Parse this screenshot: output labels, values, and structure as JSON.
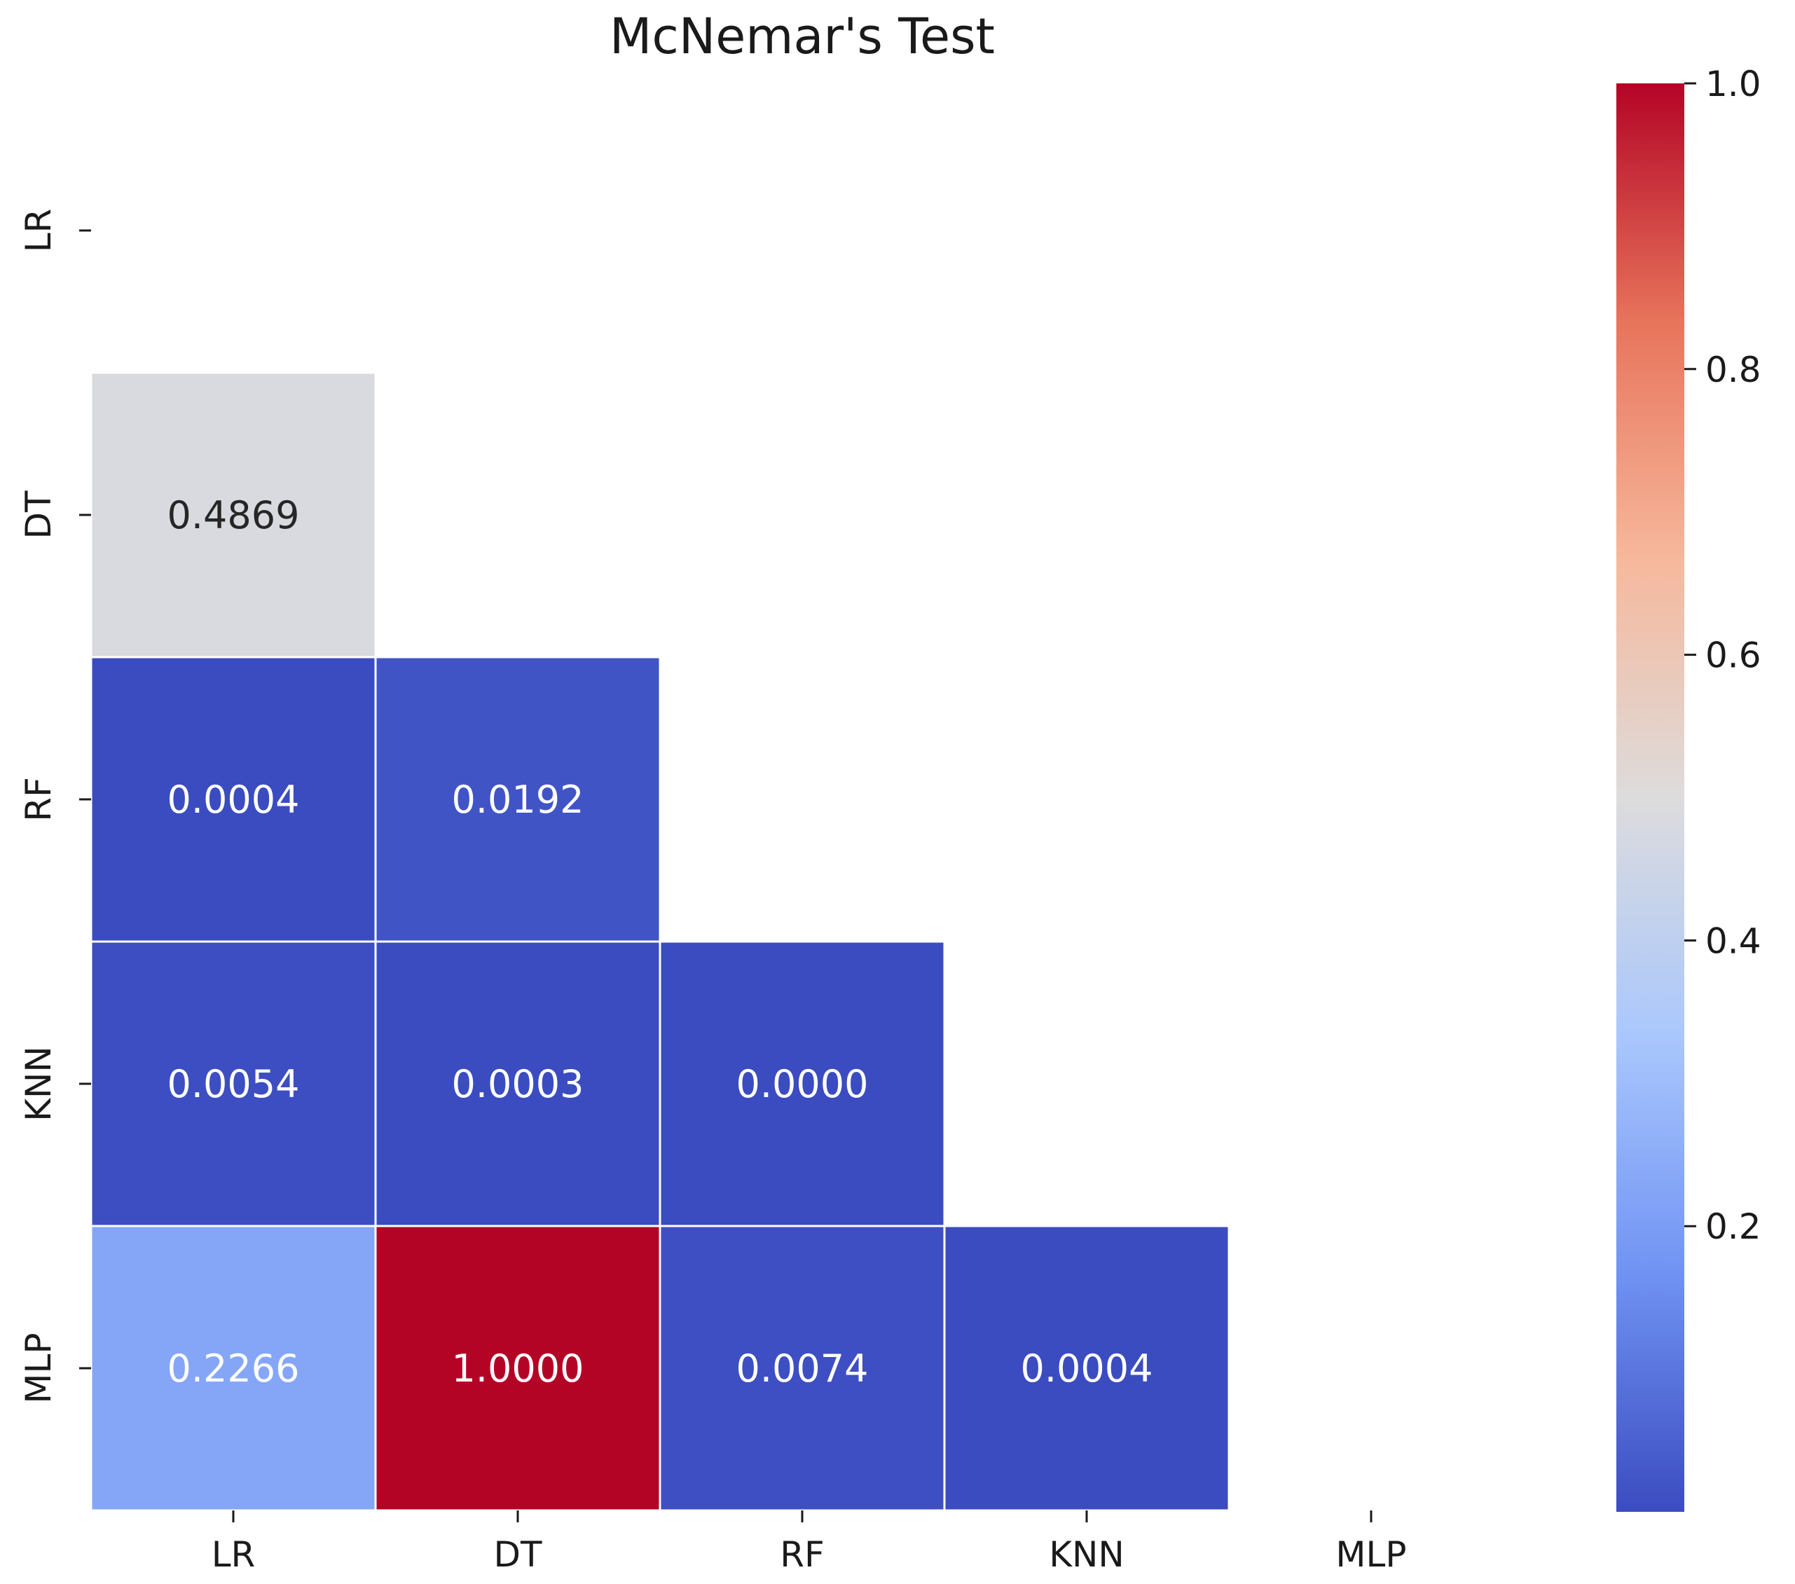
{
  "chart_data": {
    "type": "heatmap",
    "title": "McNemar's Test",
    "xlabel": "",
    "ylabel": "",
    "x_categories": [
      "LR",
      "DT",
      "RF",
      "KNN",
      "MLP"
    ],
    "y_categories": [
      "LR",
      "DT",
      "RF",
      "KNN",
      "MLP"
    ],
    "mask": "upper-triangle-including-diagonal",
    "cells": [
      {
        "row": "DT",
        "col": "LR",
        "value": 0.4869,
        "label": "0.4869"
      },
      {
        "row": "RF",
        "col": "LR",
        "value": 0.0004,
        "label": "0.0004"
      },
      {
        "row": "RF",
        "col": "DT",
        "value": 0.0192,
        "label": "0.0192"
      },
      {
        "row": "KNN",
        "col": "LR",
        "value": 0.0054,
        "label": "0.0054"
      },
      {
        "row": "KNN",
        "col": "DT",
        "value": 0.0003,
        "label": "0.0003"
      },
      {
        "row": "KNN",
        "col": "RF",
        "value": 0.0,
        "label": "0.0000"
      },
      {
        "row": "MLP",
        "col": "LR",
        "value": 0.2266,
        "label": "0.2266"
      },
      {
        "row": "MLP",
        "col": "DT",
        "value": 1.0,
        "label": "1.0000"
      },
      {
        "row": "MLP",
        "col": "RF",
        "value": 0.0074,
        "label": "0.0074"
      },
      {
        "row": "MLP",
        "col": "KNN",
        "value": 0.0004,
        "label": "0.0004"
      }
    ],
    "colormap": "coolwarm",
    "colormap_stops": [
      "#3b4cc0",
      "#7093f3",
      "#aac7fd",
      "#dddcdc",
      "#f7b89c",
      "#e7745b",
      "#b40426"
    ],
    "colorbar": {
      "range": [
        0,
        1
      ],
      "ticks": [
        0.2,
        0.4,
        0.6,
        0.8,
        1.0
      ],
      "tick_labels": [
        "0.2",
        "0.4",
        "0.6",
        "0.8",
        "1.0"
      ]
    },
    "grid": false,
    "legend": "colorbar-right"
  }
}
